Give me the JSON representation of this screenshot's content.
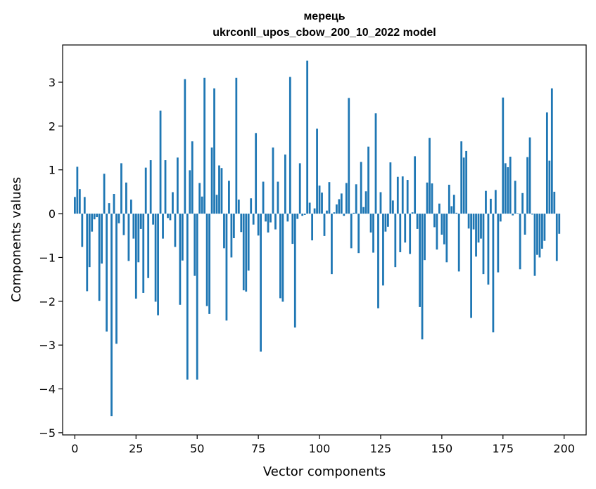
{
  "chart_data": {
    "type": "bar",
    "title": "мерець",
    "subtitle": "ukrconll_upos_cbow_200_10_2022 model",
    "xlabel": "Vector components",
    "ylabel": "Components values",
    "xlim": [
      -5,
      209
    ],
    "ylim": [
      -5.05,
      3.85
    ],
    "xticks": [
      0,
      25,
      50,
      75,
      100,
      125,
      150,
      175,
      200
    ],
    "xtick_labels": [
      "0",
      "25",
      "50",
      "75",
      "100",
      "125",
      "150",
      "175",
      "200"
    ],
    "yticks": [
      -5,
      -4,
      -3,
      -2,
      -1,
      0,
      1,
      2,
      3
    ],
    "ytick_labels": [
      "−5",
      "−4",
      "−3",
      "−2",
      "−1",
      "0",
      "1",
      "2",
      "3"
    ],
    "grid": false,
    "bar_color": "#1f77b4",
    "values": [
      0.38,
      1.07,
      0.56,
      -0.76,
      0.38,
      -1.77,
      -1.22,
      -0.41,
      -0.13,
      -0.08,
      -1.99,
      -1.14,
      0.91,
      -2.69,
      0.24,
      -4.62,
      0.45,
      -2.97,
      -0.22,
      1.15,
      -0.49,
      0.71,
      -1.08,
      0.32,
      -0.57,
      -1.94,
      -1.11,
      -0.35,
      -1.81,
      1.05,
      -1.47,
      1.22,
      -0.25,
      -2.01,
      -2.32,
      2.35,
      -0.57,
      1.22,
      -0.1,
      -0.15,
      0.49,
      -0.76,
      1.28,
      -2.08,
      -1.07,
      3.07,
      -3.79,
      0.99,
      1.65,
      -1.42,
      -3.79,
      0.7,
      0.39,
      3.1,
      -2.11,
      -2.29,
      1.51,
      2.86,
      0.43,
      1.1,
      1.04,
      -0.79,
      -2.44,
      0.75,
      -1.0,
      -0.56,
      3.1,
      0.32,
      -0.42,
      -1.75,
      -1.78,
      -1.3,
      0.35,
      -0.25,
      1.84,
      -0.5,
      -3.15,
      0.73,
      -0.18,
      -0.43,
      -0.2,
      1.51,
      -0.36,
      0.73,
      -1.93,
      -2.01,
      1.35,
      -0.18,
      3.12,
      -0.69,
      -2.6,
      -0.12,
      1.15,
      -0.05,
      -0.03,
      3.49,
      0.25,
      -0.61,
      0.12,
      1.94,
      0.64,
      0.48,
      -0.51,
      0.07,
      0.72,
      -1.38,
      0.03,
      0.21,
      0.33,
      0.46,
      -0.05,
      0.7,
      2.64,
      -0.79,
      0.02,
      0.67,
      -0.9,
      1.18,
      0.15,
      0.51,
      1.53,
      -0.43,
      -0.89,
      2.29,
      -2.16,
      0.49,
      -1.64,
      -0.41,
      -0.3,
      1.17,
      0.3,
      -1.22,
      0.84,
      -0.88,
      0.85,
      -0.66,
      0.77,
      -0.92,
      0.03,
      1.31,
      -0.35,
      -2.13,
      -2.87,
      -1.06,
      0.71,
      1.73,
      0.69,
      -0.31,
      -0.82,
      0.23,
      -0.48,
      -0.7,
      -1.11,
      0.66,
      0.17,
      0.43,
      0.02,
      -1.32,
      1.65,
      1.28,
      1.43,
      -0.34,
      -2.38,
      -0.36,
      -0.98,
      -0.66,
      -0.57,
      -1.38,
      0.52,
      -1.62,
      0.34,
      -2.71,
      0.54,
      -1.34,
      -0.18,
      2.65,
      1.15,
      1.06,
      1.3,
      -0.04,
      0.75,
      0.01,
      -1.27,
      0.47,
      -0.48,
      1.29,
      1.74,
      -0.02,
      -1.42,
      -0.94,
      -1.0,
      -0.8,
      -0.62,
      2.31,
      1.21,
      2.86,
      0.5,
      -1.08,
      -0.46
    ]
  }
}
